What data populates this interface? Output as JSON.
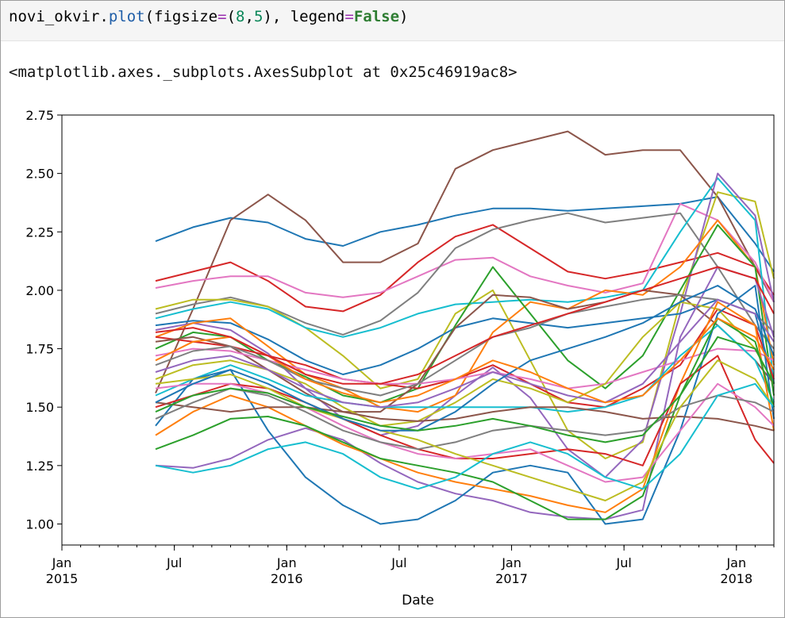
{
  "code_cell": {
    "var": "novi_okvir",
    "dot": ".",
    "method": "plot",
    "paren_open": "(figsize",
    "eq1": "=",
    "tuple_open": "(",
    "num1": "8",
    "comma": ",",
    "num2": "5",
    "tuple_close": "),",
    "space_legend": " legend",
    "eq2": "=",
    "kw_false": "False",
    "paren_close": ")"
  },
  "output_text": "<matplotlib.axes._subplots.AxesSubplot at 0x25c46919ac8>",
  "chart_data": {
    "type": "line",
    "xlabel": "Date",
    "ylabel": "",
    "legend": false,
    "xlim": [
      "2015-01",
      "2018-03"
    ],
    "ylim": [
      0.91,
      2.75
    ],
    "yticks": [
      {
        "value": 1.0,
        "label": "1.00"
      },
      {
        "value": 1.25,
        "label": "1.25"
      },
      {
        "value": 1.5,
        "label": "1.50"
      },
      {
        "value": 1.75,
        "label": "1.75"
      },
      {
        "value": 2.0,
        "label": "2.00"
      },
      {
        "value": 2.25,
        "label": "2.25"
      },
      {
        "value": 2.5,
        "label": "2.50"
      },
      {
        "value": 2.75,
        "label": "2.75"
      }
    ],
    "xticks": [
      {
        "value": "2015-01",
        "label": "Jan",
        "label2": "2015"
      },
      {
        "value": "2015-07",
        "label": "Jul",
        "label2": ""
      },
      {
        "value": "2016-01",
        "label": "Jan",
        "label2": "2016"
      },
      {
        "value": "2016-07",
        "label": "Jul",
        "label2": ""
      },
      {
        "value": "2017-01",
        "label": "Jan",
        "label2": "2017"
      },
      {
        "value": "2017-07",
        "label": "Jul",
        "label2": ""
      },
      {
        "value": "2018-01",
        "label": "Jan",
        "label2": "2018"
      }
    ],
    "x": [
      "2015-06",
      "2015-08",
      "2015-10",
      "2015-12",
      "2016-02",
      "2016-04",
      "2016-06",
      "2016-08",
      "2016-10",
      "2016-12",
      "2017-02",
      "2017-04",
      "2017-06",
      "2017-08",
      "2017-10",
      "2017-12",
      "2018-02",
      "2018-03"
    ],
    "series": [
      {
        "color": "#1f77b4",
        "values": [
          2.21,
          2.27,
          2.31,
          2.29,
          2.22,
          2.19,
          2.25,
          2.28,
          2.32,
          2.35,
          2.35,
          2.34,
          2.35,
          2.36,
          2.37,
          2.4,
          2.2,
          2.08
        ]
      },
      {
        "color": "#8c564b",
        "values": [
          1.56,
          1.92,
          2.3,
          2.41,
          2.3,
          2.12,
          2.12,
          2.2,
          2.52,
          2.6,
          2.64,
          2.68,
          2.58,
          2.6,
          2.6,
          2.4,
          2.1,
          1.95
        ]
      },
      {
        "color": "#d62728",
        "values": [
          2.04,
          2.08,
          2.12,
          2.04,
          1.93,
          1.91,
          1.98,
          2.12,
          2.23,
          2.28,
          2.18,
          2.08,
          2.05,
          2.08,
          2.12,
          2.16,
          2.1,
          1.98
        ]
      },
      {
        "color": "#e377c2",
        "values": [
          2.01,
          2.04,
          2.06,
          2.06,
          1.99,
          1.97,
          1.99,
          2.06,
          2.13,
          2.14,
          2.06,
          2.02,
          1.99,
          2.03,
          2.37,
          2.3,
          2.12,
          1.95
        ]
      },
      {
        "color": "#7f7f7f",
        "values": [
          1.9,
          1.94,
          1.97,
          1.93,
          1.86,
          1.81,
          1.87,
          1.99,
          2.18,
          2.26,
          2.3,
          2.33,
          2.29,
          2.31,
          2.33,
          2.1,
          1.85,
          1.75
        ]
      },
      {
        "color": "#bcbd22",
        "values": [
          1.92,
          1.96,
          1.96,
          1.93,
          1.84,
          1.72,
          1.58,
          1.62,
          1.9,
          2.0,
          1.7,
          1.4,
          1.28,
          1.35,
          1.95,
          2.42,
          2.38,
          2.05
        ]
      },
      {
        "color": "#17becf",
        "values": [
          1.88,
          1.92,
          1.95,
          1.92,
          1.84,
          1.8,
          1.84,
          1.9,
          1.94,
          1.95,
          1.96,
          1.95,
          1.97,
          2.0,
          2.25,
          2.48,
          2.3,
          1.6
        ]
      },
      {
        "color": "#9467bd",
        "values": [
          1.83,
          1.86,
          1.83,
          1.73,
          1.58,
          1.45,
          1.38,
          1.42,
          1.55,
          1.67,
          1.54,
          1.32,
          1.2,
          1.36,
          1.9,
          2.5,
          2.32,
          1.95
        ]
      },
      {
        "color": "#1f77b4",
        "values": [
          1.85,
          1.87,
          1.86,
          1.79,
          1.7,
          1.64,
          1.68,
          1.75,
          1.84,
          1.88,
          1.86,
          1.84,
          1.86,
          1.88,
          1.9,
          1.96,
          1.9,
          1.6
        ]
      },
      {
        "color": "#ff7f0e",
        "values": [
          1.8,
          1.86,
          1.88,
          1.76,
          1.64,
          1.58,
          1.5,
          1.48,
          1.55,
          1.82,
          1.95,
          1.92,
          2.0,
          1.98,
          2.1,
          2.3,
          2.1,
          1.68
        ]
      },
      {
        "color": "#2ca02c",
        "values": [
          1.75,
          1.82,
          1.8,
          1.7,
          1.63,
          1.55,
          1.52,
          1.58,
          1.85,
          2.1,
          1.9,
          1.7,
          1.58,
          1.72,
          2.0,
          2.28,
          2.1,
          1.55
        ]
      },
      {
        "color": "#d62728",
        "values": [
          1.8,
          1.78,
          1.76,
          1.72,
          1.68,
          1.62,
          1.6,
          1.58,
          1.62,
          1.68,
          1.6,
          1.52,
          1.5,
          1.58,
          1.68,
          1.92,
          1.85,
          1.62
        ]
      },
      {
        "color": "#8c564b",
        "values": [
          1.78,
          1.8,
          1.76,
          1.66,
          1.56,
          1.48,
          1.48,
          1.6,
          1.84,
          1.98,
          1.97,
          1.92,
          1.95,
          2.0,
          1.98,
          1.85,
          1.7,
          1.6
        ]
      },
      {
        "color": "#e377c2",
        "values": [
          1.72,
          1.75,
          1.74,
          1.7,
          1.66,
          1.62,
          1.6,
          1.6,
          1.62,
          1.65,
          1.62,
          1.58,
          1.6,
          1.65,
          1.7,
          1.75,
          1.74,
          1.7
        ]
      },
      {
        "color": "#7f7f7f",
        "values": [
          1.68,
          1.74,
          1.76,
          1.7,
          1.62,
          1.58,
          1.55,
          1.6,
          1.7,
          1.8,
          1.84,
          1.9,
          1.93,
          1.96,
          1.98,
          1.96,
          1.9,
          1.82
        ]
      },
      {
        "color": "#bcbd22",
        "values": [
          1.62,
          1.68,
          1.7,
          1.66,
          1.6,
          1.5,
          1.42,
          1.44,
          1.52,
          1.62,
          1.58,
          1.52,
          1.6,
          1.8,
          1.95,
          1.92,
          1.75,
          1.6
        ]
      },
      {
        "color": "#17becf",
        "values": [
          1.55,
          1.62,
          1.68,
          1.62,
          1.55,
          1.52,
          1.5,
          1.5,
          1.5,
          1.5,
          1.5,
          1.48,
          1.5,
          1.55,
          1.72,
          1.85,
          1.7,
          1.52
        ]
      },
      {
        "color": "#9467bd",
        "values": [
          1.25,
          1.24,
          1.28,
          1.36,
          1.41,
          1.36,
          1.26,
          1.18,
          1.13,
          1.1,
          1.05,
          1.03,
          1.02,
          1.06,
          1.8,
          2.1,
          2.05,
          1.8
        ]
      },
      {
        "color": "#1f77b4",
        "values": [
          1.42,
          1.62,
          1.66,
          1.4,
          1.2,
          1.08,
          1.0,
          1.02,
          1.1,
          1.22,
          1.25,
          1.22,
          1.0,
          1.02,
          1.4,
          1.9,
          2.02,
          1.45
        ]
      },
      {
        "color": "#ff7f0e",
        "values": [
          1.38,
          1.48,
          1.55,
          1.5,
          1.42,
          1.34,
          1.28,
          1.22,
          1.18,
          1.15,
          1.12,
          1.08,
          1.05,
          1.15,
          1.6,
          1.95,
          1.85,
          1.4
        ]
      },
      {
        "color": "#2ca02c",
        "values": [
          1.32,
          1.38,
          1.45,
          1.46,
          1.42,
          1.35,
          1.28,
          1.25,
          1.22,
          1.18,
          1.1,
          1.02,
          1.02,
          1.12,
          1.55,
          1.88,
          1.78,
          1.5
        ]
      },
      {
        "color": "#d62728",
        "values": [
          1.5,
          1.55,
          1.6,
          1.58,
          1.52,
          1.45,
          1.38,
          1.32,
          1.28,
          1.28,
          1.3,
          1.32,
          1.3,
          1.25,
          1.6,
          1.72,
          1.36,
          1.26
        ]
      },
      {
        "color": "#8c564b",
        "values": [
          1.52,
          1.5,
          1.48,
          1.5,
          1.5,
          1.48,
          1.45,
          1.44,
          1.45,
          1.48,
          1.5,
          1.5,
          1.48,
          1.45,
          1.46,
          1.45,
          1.42,
          1.4
        ]
      },
      {
        "color": "#e377c2",
        "values": [
          1.58,
          1.6,
          1.6,
          1.56,
          1.5,
          1.42,
          1.35,
          1.3,
          1.28,
          1.3,
          1.32,
          1.25,
          1.18,
          1.2,
          1.4,
          1.6,
          1.5,
          1.42
        ]
      },
      {
        "color": "#7f7f7f",
        "values": [
          1.45,
          1.52,
          1.58,
          1.55,
          1.48,
          1.4,
          1.35,
          1.32,
          1.35,
          1.4,
          1.42,
          1.4,
          1.38,
          1.4,
          1.5,
          1.55,
          1.52,
          1.48
        ]
      },
      {
        "color": "#bcbd22",
        "values": [
          1.6,
          1.62,
          1.64,
          1.58,
          1.5,
          1.45,
          1.4,
          1.36,
          1.3,
          1.25,
          1.2,
          1.15,
          1.1,
          1.18,
          1.5,
          1.7,
          1.62,
          1.5
        ]
      },
      {
        "color": "#17becf",
        "values": [
          1.25,
          1.22,
          1.25,
          1.32,
          1.35,
          1.3,
          1.2,
          1.15,
          1.2,
          1.3,
          1.35,
          1.3,
          1.2,
          1.15,
          1.3,
          1.55,
          1.6,
          1.5
        ]
      },
      {
        "color": "#9467bd",
        "values": [
          1.65,
          1.7,
          1.72,
          1.66,
          1.58,
          1.52,
          1.5,
          1.52,
          1.58,
          1.65,
          1.6,
          1.55,
          1.52,
          1.6,
          1.78,
          1.96,
          1.9,
          1.78
        ]
      },
      {
        "color": "#1f77b4",
        "values": [
          1.52,
          1.6,
          1.66,
          1.6,
          1.52,
          1.45,
          1.4,
          1.4,
          1.48,
          1.6,
          1.7,
          1.75,
          1.8,
          1.86,
          1.95,
          2.02,
          1.92,
          1.72
        ]
      },
      {
        "color": "#ff7f0e",
        "values": [
          1.7,
          1.78,
          1.8,
          1.72,
          1.62,
          1.56,
          1.52,
          1.55,
          1.62,
          1.7,
          1.65,
          1.58,
          1.52,
          1.55,
          1.7,
          1.88,
          1.8,
          1.66
        ]
      },
      {
        "color": "#2ca02c",
        "values": [
          1.48,
          1.55,
          1.58,
          1.56,
          1.5,
          1.46,
          1.42,
          1.4,
          1.42,
          1.45,
          1.42,
          1.38,
          1.35,
          1.38,
          1.55,
          1.8,
          1.75,
          1.6
        ]
      },
      {
        "color": "#d62728",
        "values": [
          1.82,
          1.84,
          1.8,
          1.72,
          1.64,
          1.6,
          1.6,
          1.64,
          1.72,
          1.8,
          1.85,
          1.9,
          1.95,
          2.0,
          2.05,
          2.1,
          2.05,
          1.9
        ]
      }
    ]
  }
}
